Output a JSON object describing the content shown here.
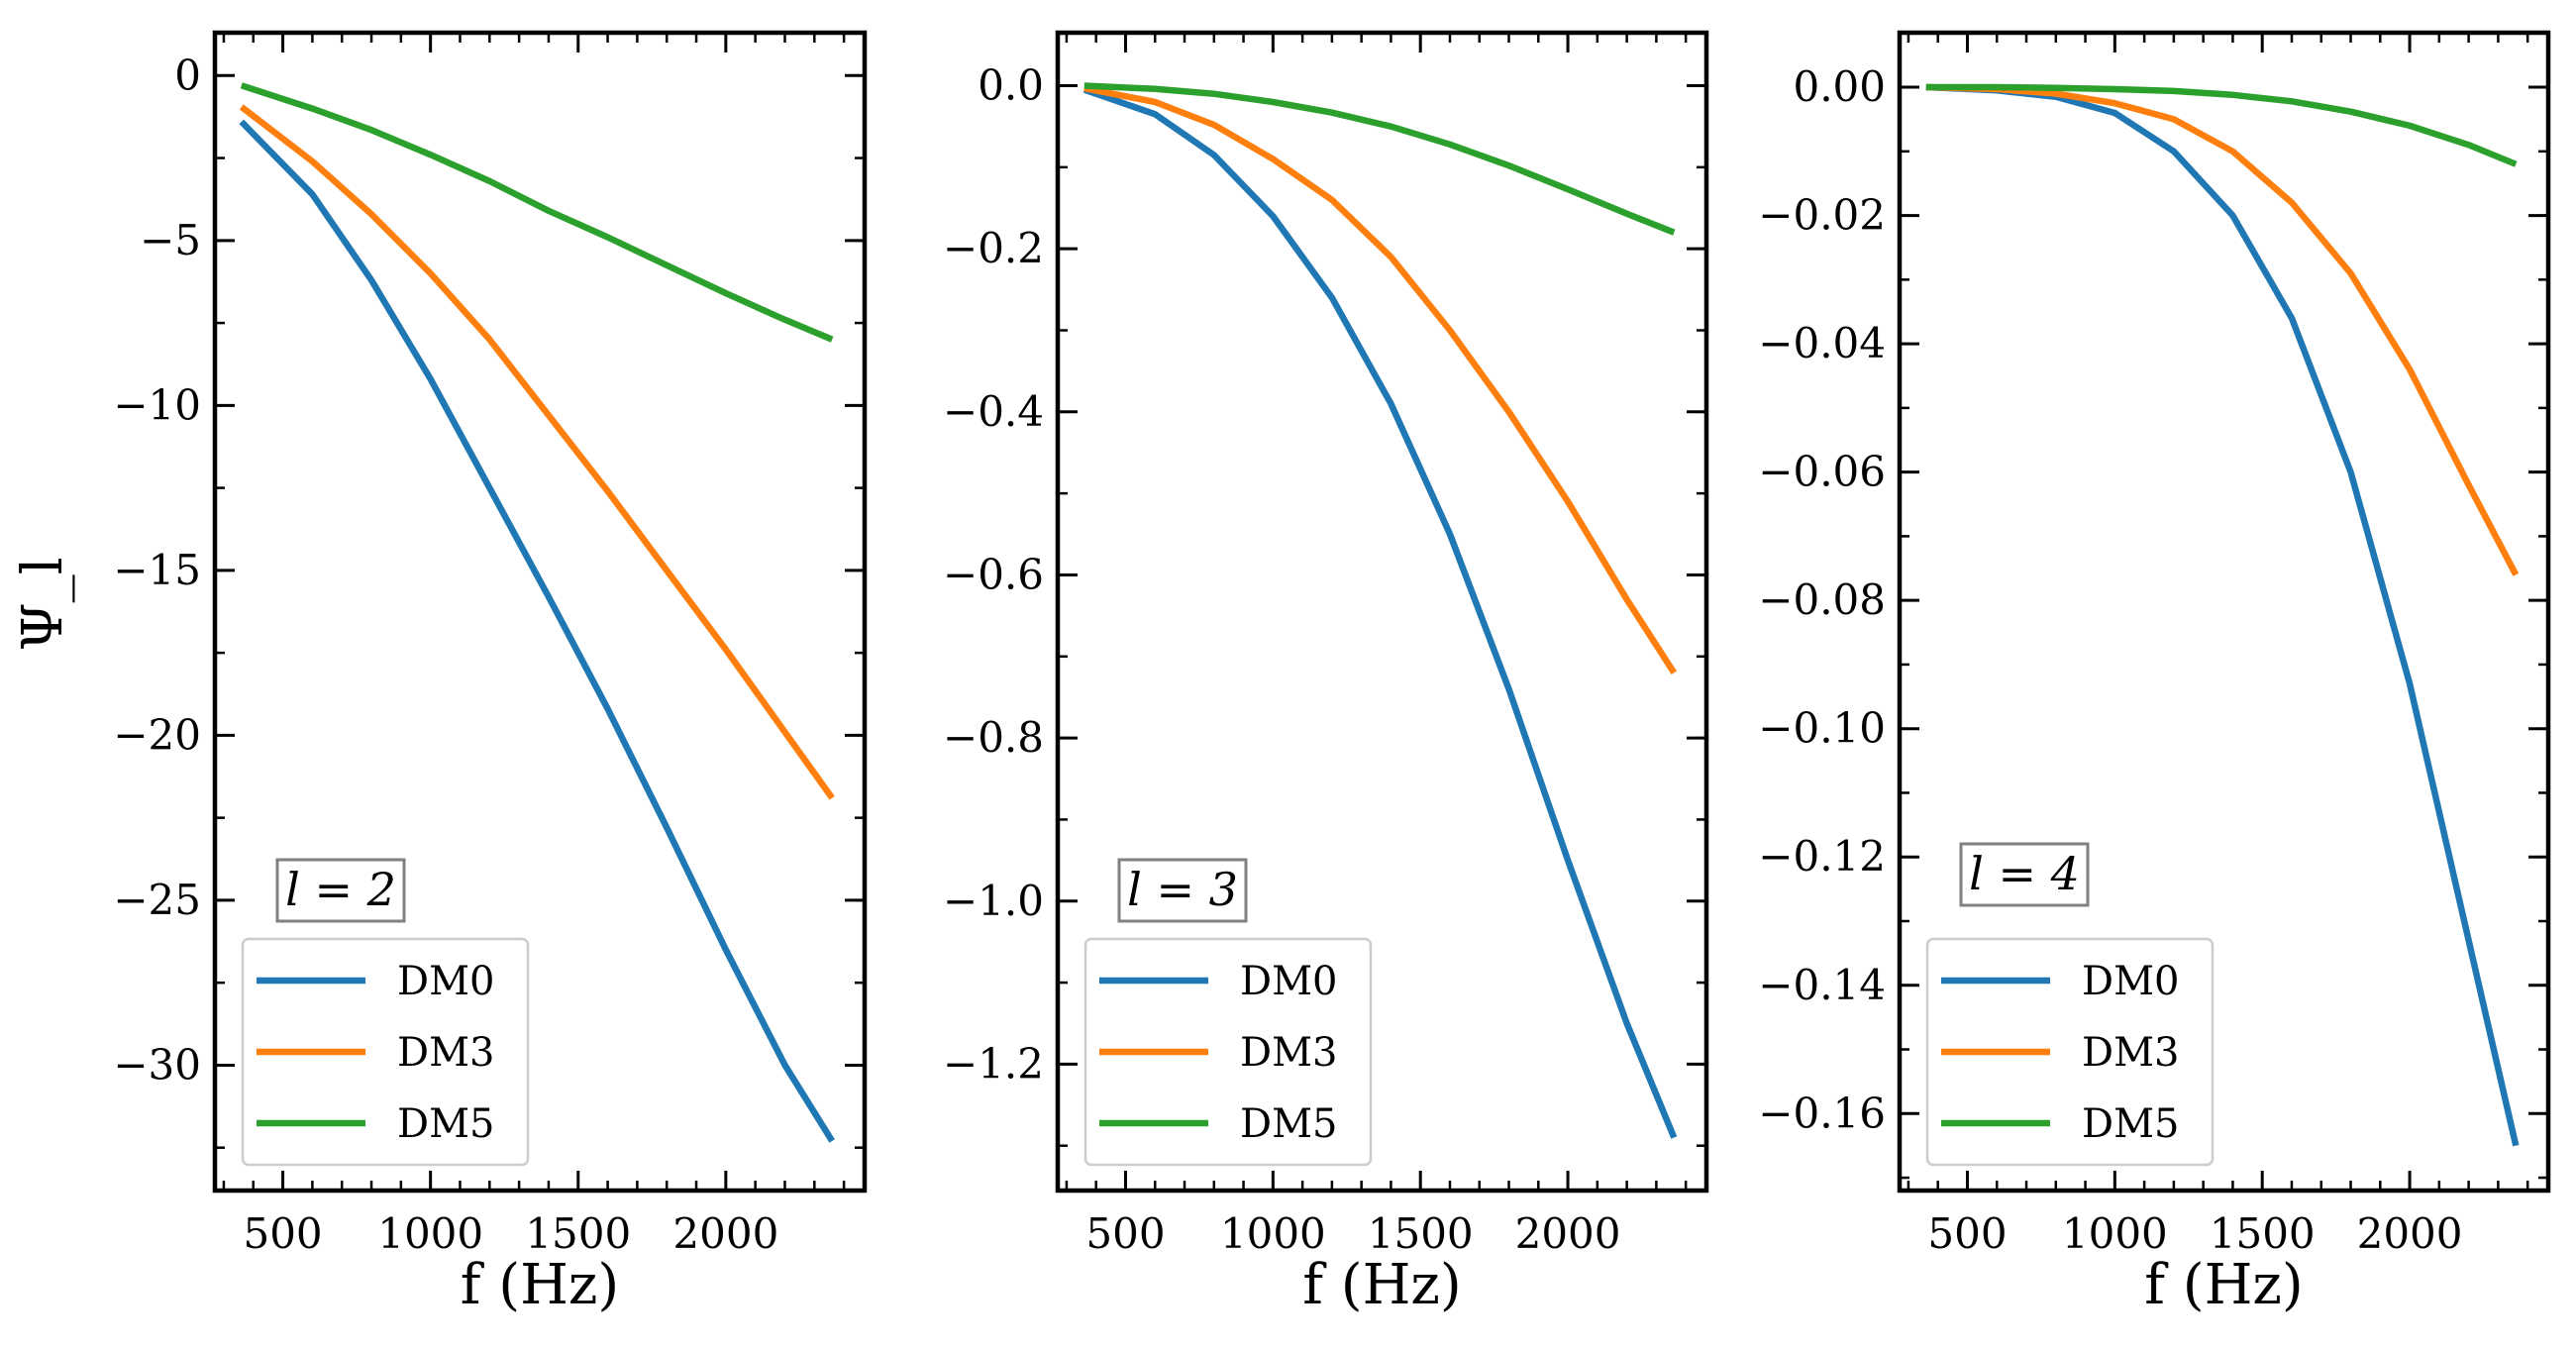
{
  "figure": {
    "ylabel": "Ψ_l"
  },
  "chart_data": [
    {
      "type": "line",
      "xlabel": "f (Hz)",
      "ylabel": "Ψ_l",
      "annotation": "l = 2",
      "xlim": [
        270,
        2470
      ],
      "ylim": [
        -33.8,
        1.3
      ],
      "xticks": [
        500,
        1000,
        1500,
        2000
      ],
      "xtick_labels": [
        "500",
        "1000",
        "1500",
        "2000"
      ],
      "yticks": [
        0,
        -5,
        -10,
        -15,
        -20,
        -25,
        -30
      ],
      "ytick_labels": [
        "0",
        "−5",
        "−10",
        "−15",
        "−20",
        "−25",
        "−30"
      ],
      "xminor_step": 100,
      "yminor_step": 2.5,
      "legend_position": "lower-left",
      "x": [
        360,
        600,
        800,
        1000,
        1200,
        1400,
        1600,
        1800,
        2000,
        2200,
        2360
      ],
      "series": [
        {
          "name": "DM0",
          "color": "#1f77b4",
          "values": [
            -1.4,
            -3.6,
            -6.2,
            -9.2,
            -12.5,
            -15.8,
            -19.2,
            -22.8,
            -26.5,
            -30.0,
            -32.3
          ]
        },
        {
          "name": "DM3",
          "color": "#ff7f0e",
          "values": [
            -0.95,
            -2.6,
            -4.2,
            -6.0,
            -8.0,
            -10.3,
            -12.6,
            -15.0,
            -17.4,
            -19.9,
            -21.9
          ]
        },
        {
          "name": "DM5",
          "color": "#2ca02c",
          "values": [
            -0.3,
            -1.0,
            -1.65,
            -2.4,
            -3.2,
            -4.1,
            -4.9,
            -5.75,
            -6.6,
            -7.4,
            -8.0
          ]
        }
      ]
    },
    {
      "type": "line",
      "xlabel": "f (Hz)",
      "ylabel": "",
      "annotation": "l = 3",
      "xlim": [
        270,
        2470
      ],
      "ylim": [
        -1.355,
        0.065
      ],
      "xticks": [
        500,
        1000,
        1500,
        2000
      ],
      "xtick_labels": [
        "500",
        "1000",
        "1500",
        "2000"
      ],
      "yticks": [
        0.0,
        -0.2,
        -0.4,
        -0.6,
        -0.8,
        -1.0,
        -1.2
      ],
      "ytick_labels": [
        "0.0",
        "−0.2",
        "−0.4",
        "−0.6",
        "−0.8",
        "−1.0",
        "−1.2"
      ],
      "xminor_step": 100,
      "yminor_step": 0.1,
      "legend_position": "lower-left",
      "x": [
        360,
        600,
        800,
        1000,
        1200,
        1400,
        1600,
        1800,
        2000,
        2200,
        2360
      ],
      "series": [
        {
          "name": "DM0",
          "color": "#1f77b4",
          "values": [
            -0.005,
            -0.035,
            -0.085,
            -0.16,
            -0.26,
            -0.39,
            -0.55,
            -0.74,
            -0.95,
            -1.15,
            -1.29
          ]
        },
        {
          "name": "DM3",
          "color": "#ff7f0e",
          "values": [
            -0.003,
            -0.02,
            -0.048,
            -0.09,
            -0.14,
            -0.21,
            -0.3,
            -0.4,
            -0.51,
            -0.63,
            -0.72
          ]
        },
        {
          "name": "DM5",
          "color": "#2ca02c",
          "values": [
            0.0,
            -0.004,
            -0.01,
            -0.02,
            -0.033,
            -0.05,
            -0.072,
            -0.098,
            -0.127,
            -0.157,
            -0.18
          ]
        }
      ]
    },
    {
      "type": "line",
      "xlabel": "f (Hz)",
      "ylabel": "",
      "annotation": "l = 4",
      "xlim": [
        270,
        2470
      ],
      "ylim": [
        -0.172,
        0.0085
      ],
      "xticks": [
        500,
        1000,
        1500,
        2000
      ],
      "xtick_labels": [
        "500",
        "1000",
        "1500",
        "2000"
      ],
      "yticks": [
        0.0,
        -0.02,
        -0.04,
        -0.06,
        -0.08,
        -0.1,
        -0.12,
        -0.14,
        -0.16
      ],
      "ytick_labels": [
        "0.00",
        "−0.02",
        "−0.04",
        "−0.06",
        "−0.08",
        "−0.10",
        "−0.12",
        "−0.14",
        "−0.16"
      ],
      "xminor_step": 100,
      "yminor_step": 0.01,
      "legend_position": "lower-left",
      "x": [
        360,
        600,
        800,
        1000,
        1200,
        1400,
        1600,
        1800,
        2000,
        2200,
        2360
      ],
      "series": [
        {
          "name": "DM0",
          "color": "#1f77b4",
          "values": [
            0.0,
            -0.0005,
            -0.0015,
            -0.004,
            -0.01,
            -0.02,
            -0.036,
            -0.06,
            -0.093,
            -0.133,
            -0.165
          ]
        },
        {
          "name": "DM3",
          "color": "#ff7f0e",
          "values": [
            0.0,
            -0.0003,
            -0.001,
            -0.0025,
            -0.005,
            -0.01,
            -0.018,
            -0.029,
            -0.044,
            -0.062,
            -0.076
          ]
        },
        {
          "name": "DM5",
          "color": "#2ca02c",
          "values": [
            0.0,
            0.0,
            -0.0001,
            -0.0003,
            -0.0006,
            -0.0012,
            -0.0022,
            -0.0038,
            -0.006,
            -0.009,
            -0.012
          ]
        }
      ]
    }
  ]
}
